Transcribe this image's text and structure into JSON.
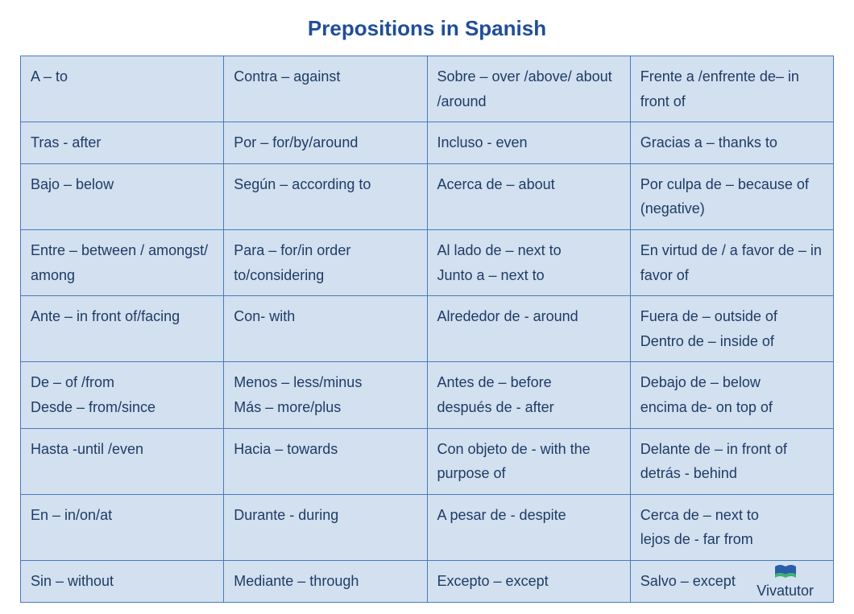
{
  "title": "Prepositions in Spanish",
  "title_color": "#1f4e99",
  "title_fontsize": 26,
  "cell_background": "#d2e0ef",
  "cell_border_color": "#4a7bbf",
  "cell_text_color": "#1f3b66",
  "cell_fontsize": 18,
  "table": {
    "columns": 4,
    "rows": [
      [
        "A – to",
        "Contra – against",
        "Sobre – over /above/ about /around",
        "Frente a /enfrente de– in front of"
      ],
      [
        "Tras - after",
        "Por – for/by/around",
        "Incluso - even",
        "Gracias a – thanks to"
      ],
      [
        "Bajo – below",
        "Según – according to",
        "Acerca de – about",
        "Por culpa de – because of (negative)"
      ],
      [
        "Entre – between / amongst/ among",
        "Para – for/in order to/considering",
        "Al lado de – next to\nJunto a – next to",
        "En virtud de / a favor de – in favor of"
      ],
      [
        "Ante – in front of/facing",
        "Con- with",
        "Alrededor de - around",
        "Fuera de – outside of\nDentro de – inside of"
      ],
      [
        "De – of /from\nDesde – from/since",
        "Menos – less/minus\nMás – more/plus",
        "Antes de – before\ndespués de - after",
        "Debajo de – below\nencima de- on top of"
      ],
      [
        "Hasta -until /even",
        "Hacia – towards",
        "Con objeto de - with the purpose of",
        "Delante de – in front of\ndetrás - behind"
      ],
      [
        "En – in/on/at",
        "Durante - during",
        "A pesar de - despite",
        "Cerca de – next to\n lejos de - far from"
      ],
      [
        "Sin – without",
        "Mediante – through",
        "Excepto – except",
        "Salvo – except"
      ]
    ]
  },
  "footer": {
    "label": "Vivatutor",
    "icon_colors": {
      "top": "#2a5ea8",
      "bottom": "#3fb36f"
    }
  }
}
